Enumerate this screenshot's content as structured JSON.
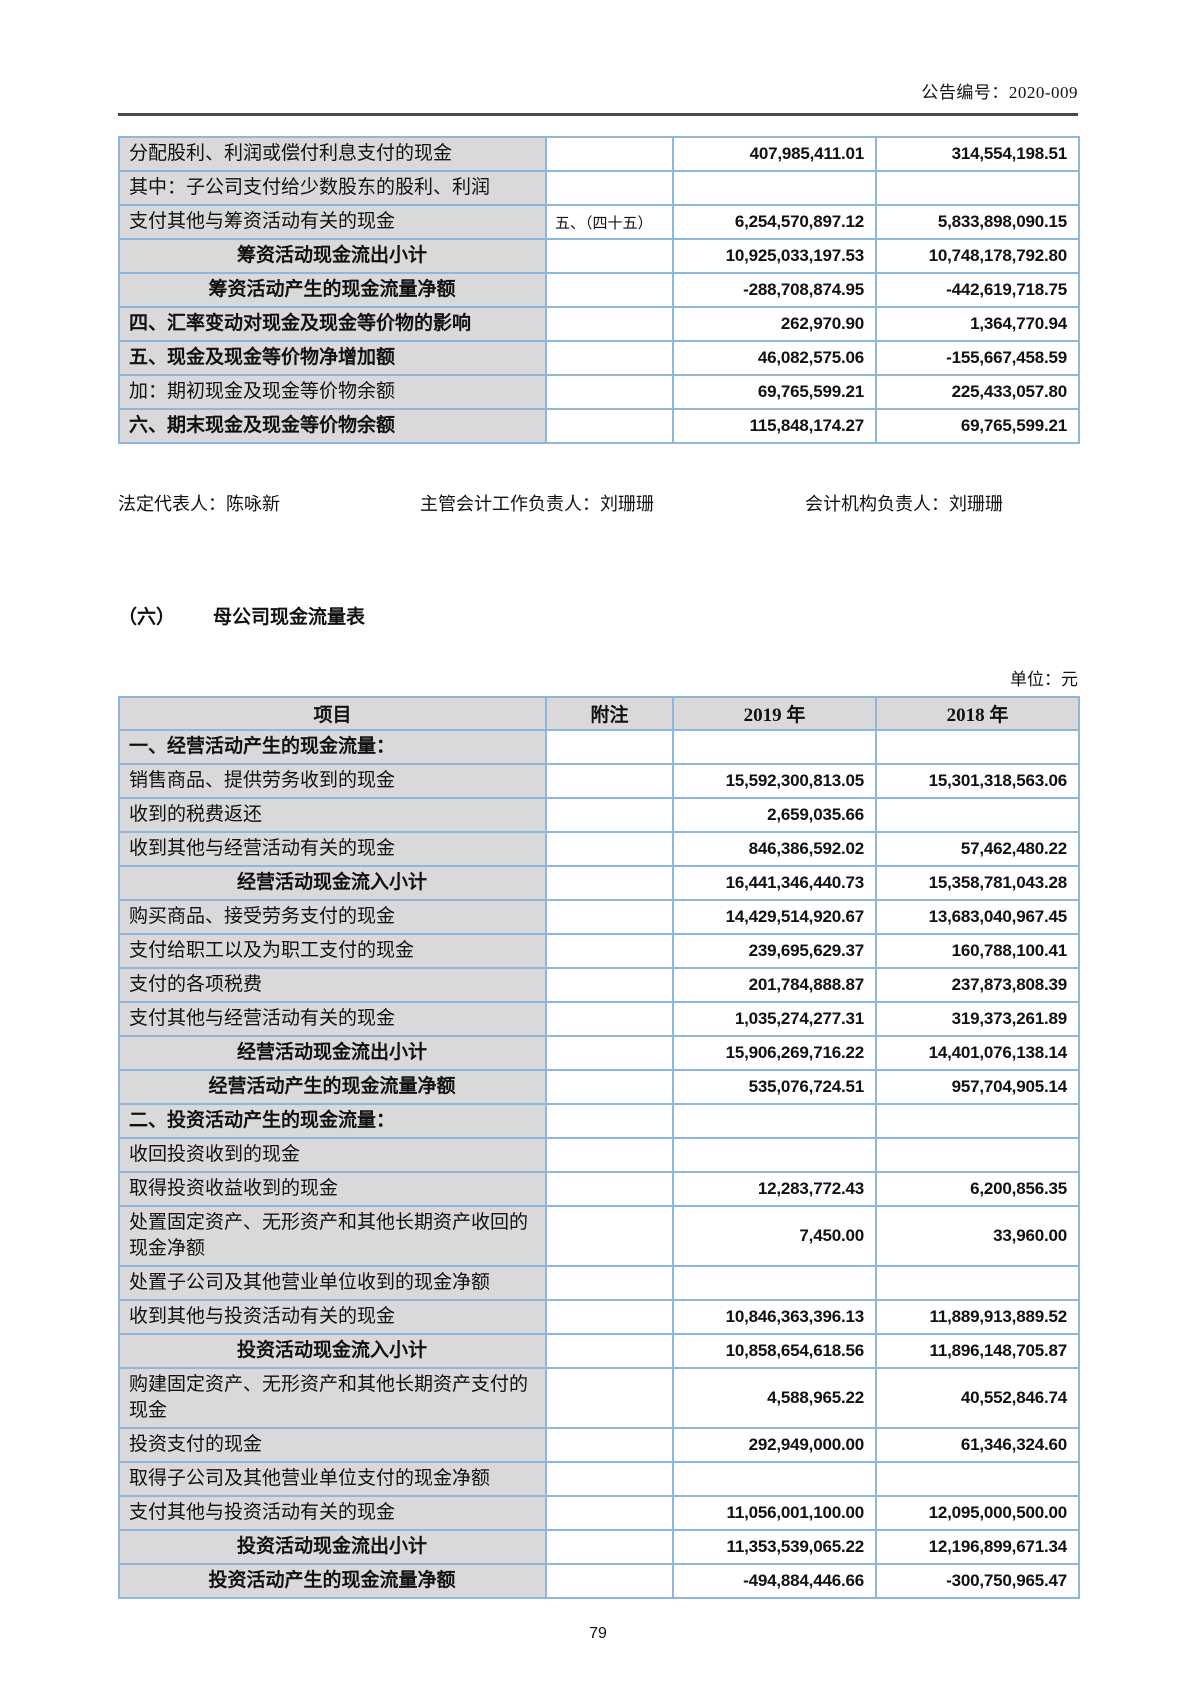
{
  "header": {
    "doc_number": "公告编号：2020-009"
  },
  "signatures": {
    "legal_rep": "法定代表人：陈咏新",
    "chief_accountant": "主管会计工作负责人：刘珊珊",
    "accounting_head": "会计机构负责人：刘珊珊"
  },
  "section": {
    "index": "（六）",
    "title": "母公司现金流量表",
    "unit": "单位：元"
  },
  "footer": {
    "page_number": "79"
  },
  "colors": {
    "table_border": "#8fb6dc",
    "cell_gray": "#d9d9d9",
    "rule_dark": "#4a4a4a"
  },
  "table1": {
    "rows": [
      {
        "label": "分配股利、利润或偿付利息支付的现金",
        "note": "",
        "y2019": "407,985,411.01",
        "y2018": "314,554,198.51",
        "style": "item"
      },
      {
        "label": "其中：子公司支付给少数股东的股利、利润",
        "note": "",
        "y2019": "",
        "y2018": "",
        "style": "item"
      },
      {
        "label": "支付其他与筹资活动有关的现金",
        "note": "五、（四十五）",
        "y2019": "6,254,570,897.12",
        "y2018": "5,833,898,090.15",
        "style": "item"
      },
      {
        "label": "筹资活动现金流出小计",
        "note": "",
        "y2019": "10,925,033,197.53",
        "y2018": "10,748,178,792.80",
        "style": "subtotal"
      },
      {
        "label": "筹资活动产生的现金流量净额",
        "note": "",
        "y2019": "-288,708,874.95",
        "y2018": "-442,619,718.75",
        "style": "subtotal"
      },
      {
        "label": "四、汇率变动对现金及现金等价物的影响",
        "note": "",
        "y2019": "262,970.90",
        "y2018": "1,364,770.94",
        "style": "bold"
      },
      {
        "label": "五、现金及现金等价物净增加额",
        "note": "",
        "y2019": "46,082,575.06",
        "y2018": "-155,667,458.59",
        "style": "bold"
      },
      {
        "label": "加：期初现金及现金等价物余额",
        "note": "",
        "y2019": "69,765,599.21",
        "y2018": "225,433,057.80",
        "style": "item"
      },
      {
        "label": "六、期末现金及现金等价物余额",
        "note": "",
        "y2019": "115,848,174.27",
        "y2018": "69,765,599.21",
        "style": "bold"
      }
    ]
  },
  "table2": {
    "headers": [
      "项目",
      "附注",
      "2019 年",
      "2018 年"
    ],
    "rows": [
      {
        "label": "一、经营活动产生的现金流量：",
        "note": "",
        "y2019": "",
        "y2018": "",
        "style": "section"
      },
      {
        "label": "销售商品、提供劳务收到的现金",
        "note": "",
        "y2019": "15,592,300,813.05",
        "y2018": "15,301,318,563.06",
        "style": "item"
      },
      {
        "label": "收到的税费返还",
        "note": "",
        "y2019": "2,659,035.66",
        "y2018": "",
        "style": "item"
      },
      {
        "label": "收到其他与经营活动有关的现金",
        "note": "",
        "y2019": "846,386,592.02",
        "y2018": "57,462,480.22",
        "style": "item"
      },
      {
        "label": "经营活动现金流入小计",
        "note": "",
        "y2019": "16,441,346,440.73",
        "y2018": "15,358,781,043.28",
        "style": "subtotal"
      },
      {
        "label": "购买商品、接受劳务支付的现金",
        "note": "",
        "y2019": "14,429,514,920.67",
        "y2018": "13,683,040,967.45",
        "style": "item"
      },
      {
        "label": "支付给职工以及为职工支付的现金",
        "note": "",
        "y2019": "239,695,629.37",
        "y2018": "160,788,100.41",
        "style": "item"
      },
      {
        "label": "支付的各项税费",
        "note": "",
        "y2019": "201,784,888.87",
        "y2018": "237,873,808.39",
        "style": "item"
      },
      {
        "label": "支付其他与经营活动有关的现金",
        "note": "",
        "y2019": "1,035,274,277.31",
        "y2018": "319,373,261.89",
        "style": "item"
      },
      {
        "label": "经营活动现金流出小计",
        "note": "",
        "y2019": "15,906,269,716.22",
        "y2018": "14,401,076,138.14",
        "style": "subtotal"
      },
      {
        "label": "经营活动产生的现金流量净额",
        "note": "",
        "y2019": "535,076,724.51",
        "y2018": "957,704,905.14",
        "style": "subtotal"
      },
      {
        "label": "二、投资活动产生的现金流量：",
        "note": "",
        "y2019": "",
        "y2018": "",
        "style": "section"
      },
      {
        "label": "收回投资收到的现金",
        "note": "",
        "y2019": "",
        "y2018": "",
        "style": "item"
      },
      {
        "label": "取得投资收益收到的现金",
        "note": "",
        "y2019": "12,283,772.43",
        "y2018": "6,200,856.35",
        "style": "item"
      },
      {
        "label": "处置固定资产、无形资产和其他长期资产收回的现金净额",
        "note": "",
        "y2019": "7,450.00",
        "y2018": "33,960.00",
        "style": "item"
      },
      {
        "label": "处置子公司及其他营业单位收到的现金净额",
        "note": "",
        "y2019": "",
        "y2018": "",
        "style": "item"
      },
      {
        "label": "收到其他与投资活动有关的现金",
        "note": "",
        "y2019": "10,846,363,396.13",
        "y2018": "11,889,913,889.52",
        "style": "item"
      },
      {
        "label": "投资活动现金流入小计",
        "note": "",
        "y2019": "10,858,654,618.56",
        "y2018": "11,896,148,705.87",
        "style": "subtotal"
      },
      {
        "label": "购建固定资产、无形资产和其他长期资产支付的现金",
        "note": "",
        "y2019": "4,588,965.22",
        "y2018": "40,552,846.74",
        "style": "item"
      },
      {
        "label": "投资支付的现金",
        "note": "",
        "y2019": "292,949,000.00",
        "y2018": "61,346,324.60",
        "style": "item"
      },
      {
        "label": "取得子公司及其他营业单位支付的现金净额",
        "note": "",
        "y2019": "",
        "y2018": "",
        "style": "item"
      },
      {
        "label": "支付其他与投资活动有关的现金",
        "note": "",
        "y2019": "11,056,001,100.00",
        "y2018": "12,095,000,500.00",
        "style": "item"
      },
      {
        "label": "投资活动现金流出小计",
        "note": "",
        "y2019": "11,353,539,065.22",
        "y2018": "12,196,899,671.34",
        "style": "subtotal"
      },
      {
        "label": "投资活动产生的现金流量净额",
        "note": "",
        "y2019": "-494,884,446.66",
        "y2018": "-300,750,965.47",
        "style": "subtotal"
      }
    ]
  }
}
